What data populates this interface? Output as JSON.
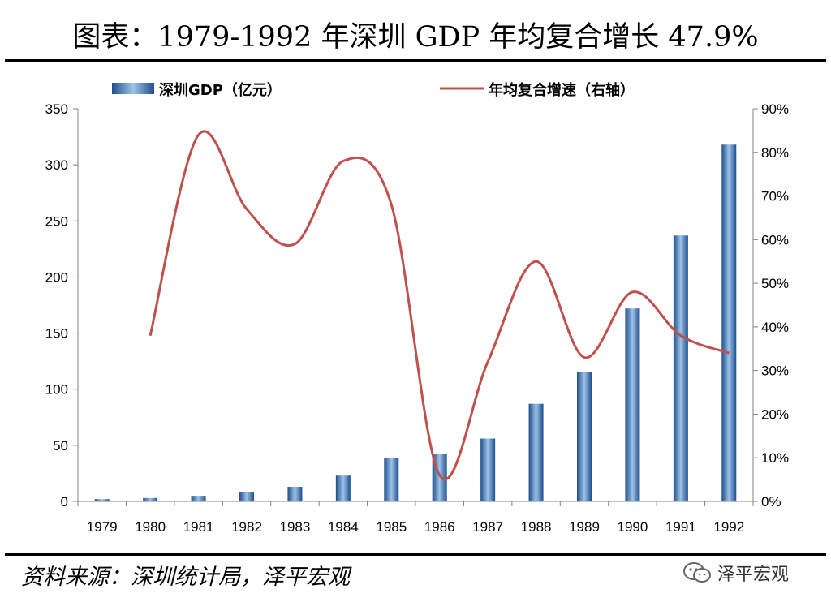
{
  "header": {
    "title": "图表：1979-1992 年深圳 GDP 年均复合增长 47.9%"
  },
  "footer": {
    "source": "资料来源：深圳统计局，泽平宏观",
    "brand": "泽平宏观"
  },
  "colors": {
    "bar": "#3E7CC4",
    "line": "#C0504D",
    "axis": "#808080"
  },
  "chart_data": {
    "type": "bar",
    "categories": [
      "1979",
      "1980",
      "1981",
      "1982",
      "1983",
      "1984",
      "1985",
      "1986",
      "1987",
      "1988",
      "1989",
      "1990",
      "1991",
      "1992"
    ],
    "series": [
      {
        "name": "深圳GDP（亿元）",
        "type": "bar",
        "axis": "left",
        "values": [
          2,
          3,
          5,
          8,
          13,
          23,
          39,
          42,
          56,
          87,
          115,
          172,
          237,
          318
        ]
      },
      {
        "name": "年均复合增速（右轴）",
        "type": "line",
        "axis": "right",
        "values": [
          null,
          0.38,
          0.84,
          0.67,
          0.59,
          0.78,
          0.68,
          0.06,
          0.32,
          0.55,
          0.33,
          0.48,
          0.38,
          0.34
        ]
      }
    ],
    "y_left": {
      "range": [
        0,
        350
      ],
      "ticks": [
        "0",
        "50",
        "100",
        "150",
        "200",
        "250",
        "300",
        "350"
      ]
    },
    "y_right": {
      "range": [
        0,
        0.9
      ],
      "ticks": [
        "0%",
        "10%",
        "20%",
        "30%",
        "40%",
        "50%",
        "60%",
        "70%",
        "80%",
        "90%"
      ]
    },
    "legend_position": "top",
    "grid": false
  }
}
